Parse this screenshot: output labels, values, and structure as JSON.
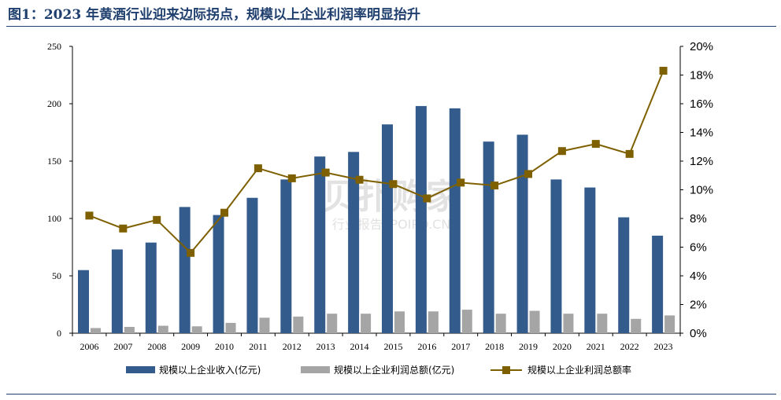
{
  "figure": {
    "title": "图1：2023 年黄酒行业迎来边际拐点，规模以上企业利润率明显抬升"
  },
  "watermark": {
    "main": "贝扑购家",
    "sub": "行业报告 IPOIPO.CN"
  },
  "colors": {
    "revenue": "#335c8d",
    "profit": "#a5a5a5",
    "rate": "#7f6000",
    "axis": "#000000",
    "title": "#1f3f6e"
  },
  "chart_data": {
    "type": "bar",
    "categories": [
      "2006",
      "2007",
      "2008",
      "2009",
      "2010",
      "2011",
      "2012",
      "2013",
      "2014",
      "2015",
      "2016",
      "2017",
      "2018",
      "2019",
      "2020",
      "2021",
      "2022",
      "2023"
    ],
    "series": [
      {
        "name": "规模以上企业收入(亿元)",
        "type": "bar",
        "axis": "left",
        "color": "#335c8d",
        "values": [
          55,
          73,
          79,
          110,
          103,
          118,
          134,
          154,
          158,
          182,
          198,
          196,
          167,
          173,
          134,
          127,
          101,
          85
        ]
      },
      {
        "name": "规模以上企业利润总额(亿元)",
        "type": "bar",
        "axis": "left",
        "color": "#a5a5a5",
        "values": [
          4.5,
          5.5,
          6.5,
          6.0,
          9.0,
          13.5,
          14.5,
          17.0,
          17.0,
          19.0,
          19.0,
          20.5,
          17.0,
          19.5,
          17.0,
          17.0,
          12.5,
          15.5
        ]
      },
      {
        "name": "规模以上企业利润总额率",
        "type": "line",
        "axis": "right",
        "color": "#7f6000",
        "values": [
          8.2,
          7.3,
          7.9,
          5.6,
          8.4,
          11.5,
          10.8,
          11.2,
          10.7,
          10.4,
          9.4,
          10.5,
          10.3,
          11.1,
          12.7,
          13.2,
          12.5,
          18.3
        ]
      }
    ],
    "y_left": {
      "min": 0,
      "max": 250,
      "ticks": [
        0,
        50,
        100,
        150,
        200,
        250
      ]
    },
    "y_right": {
      "min": 0,
      "max": 20,
      "ticks": [
        "0%",
        "2%",
        "4%",
        "6%",
        "8%",
        "10%",
        "12%",
        "14%",
        "16%",
        "18%",
        "20%"
      ]
    },
    "legend_position": "bottom",
    "grid": false
  }
}
